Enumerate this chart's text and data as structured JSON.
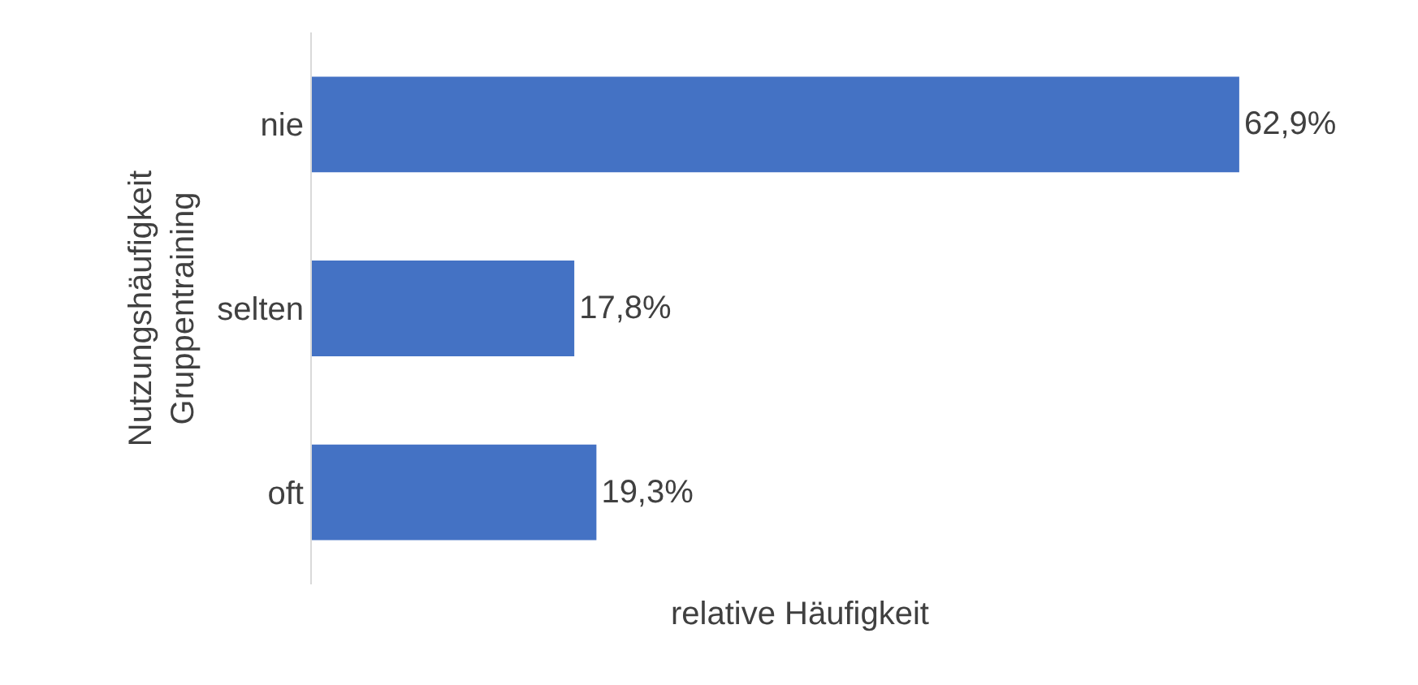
{
  "chart_data": {
    "type": "bar",
    "orientation": "horizontal",
    "categories": [
      "nie",
      "selten",
      "oft"
    ],
    "values": [
      62.9,
      17.8,
      19.3
    ],
    "value_labels": [
      "62,9%",
      "17,8%",
      "19,3%"
    ],
    "color": "#4472c4",
    "xlabel": "relative Häufigkeit",
    "ylabel": "Nutzungshäufigkeit\nGruppentraining",
    "tick_labels": "y"
  }
}
